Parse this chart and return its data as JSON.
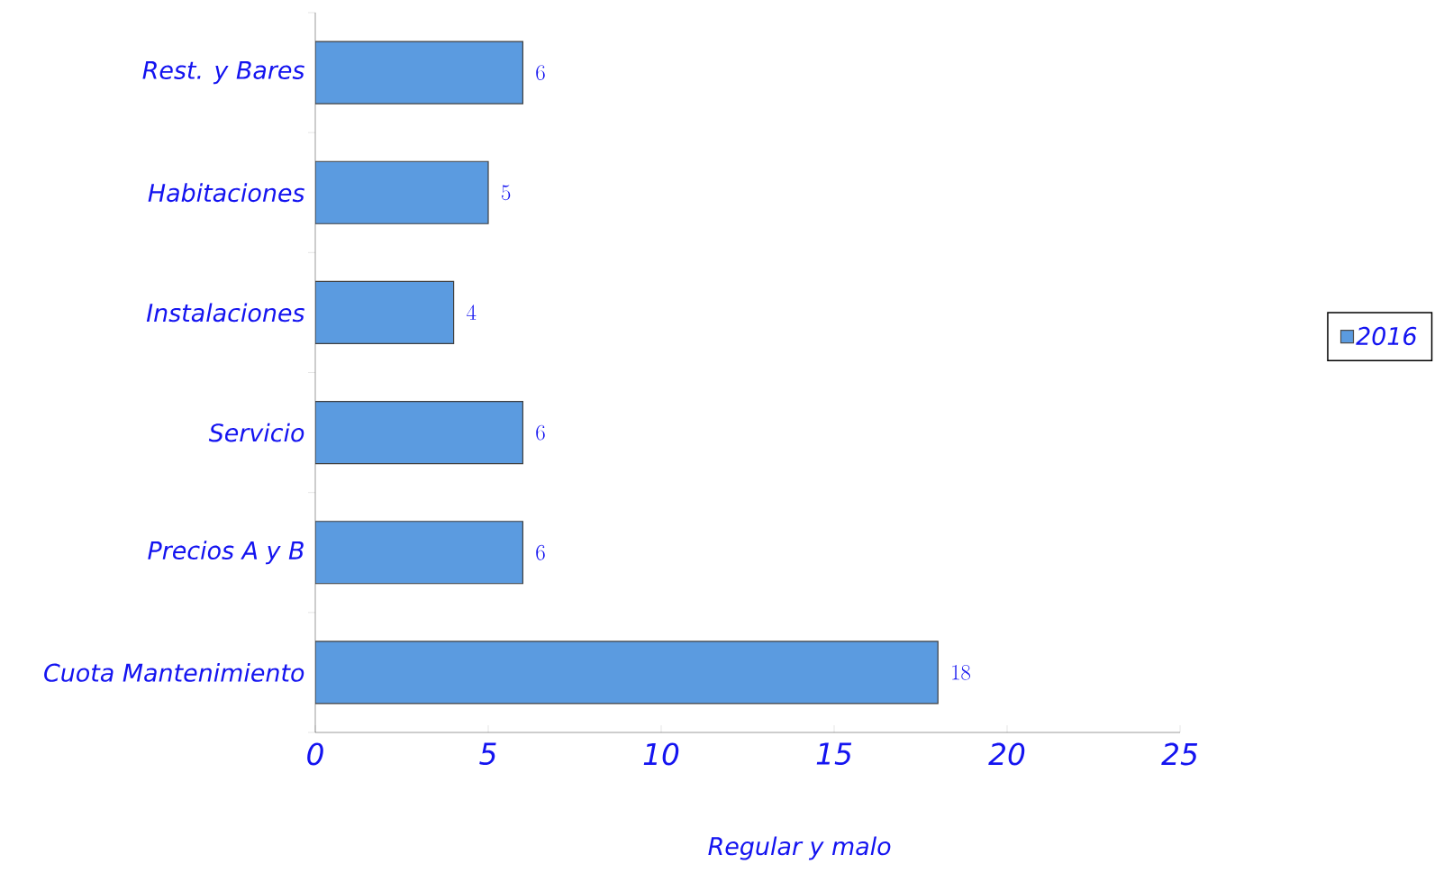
{
  "chart_data": {
    "type": "bar",
    "orientation": "horizontal",
    "categories": [
      "Rest. y Bares",
      "Habitaciones",
      "Instalaciones",
      "Servicio",
      "Precios A y B",
      "Cuota Mantenimiento"
    ],
    "series": [
      {
        "name": "2016",
        "color": "#5b9be0",
        "values": [
          6,
          5,
          4,
          6,
          6,
          18
        ]
      }
    ],
    "xlim": [
      0,
      25
    ],
    "xticks": [
      0,
      5,
      10,
      15,
      20,
      25
    ],
    "xlabel": "Regular y malo",
    "data_labels": true,
    "legend": "right",
    "grid": false
  }
}
